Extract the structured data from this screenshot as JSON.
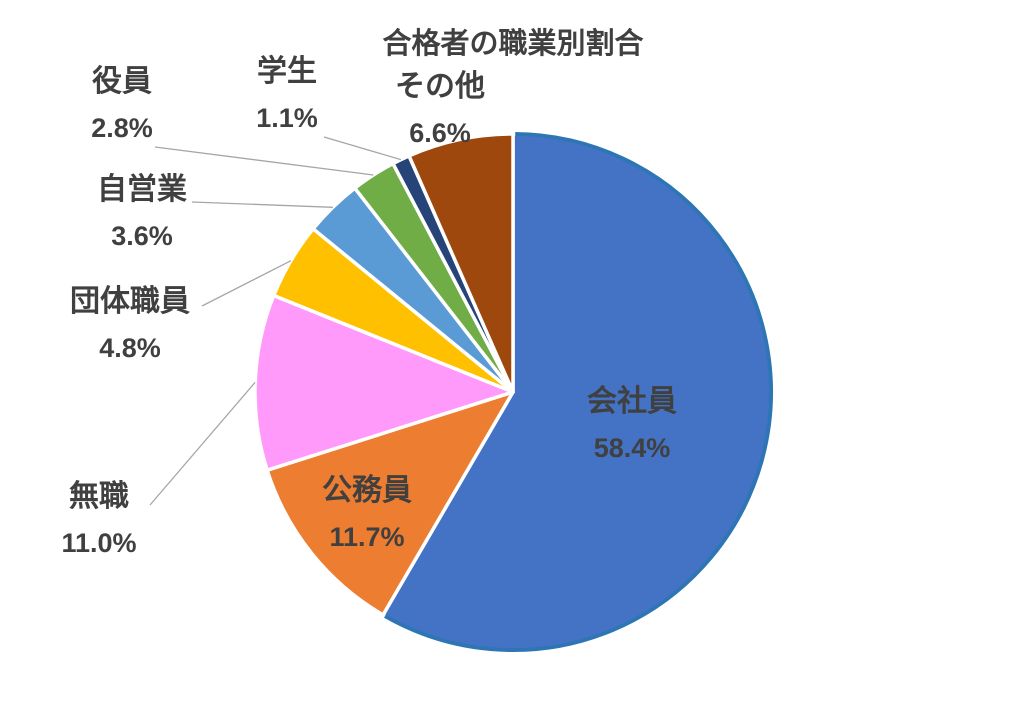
{
  "chart_data": {
    "type": "pie",
    "title": "合格者の職業別割合",
    "direction": "clockwise",
    "start_angle_deg": 0,
    "slices": [
      {
        "label": "会社員",
        "value": 58.4,
        "pct_label": "58.4%",
        "color": "#4472C4",
        "label_placement": "inside"
      },
      {
        "label": "公務員",
        "value": 11.7,
        "pct_label": "11.7%",
        "color": "#ED7D31",
        "label_placement": "inside"
      },
      {
        "label": "無職",
        "value": 11.0,
        "pct_label": "11.0%",
        "color": "#FF99FA",
        "label_placement": "outside-leader"
      },
      {
        "label": "団体職員",
        "value": 4.8,
        "pct_label": "4.8%",
        "color": "#FFC000",
        "label_placement": "outside-leader"
      },
      {
        "label": "自営業",
        "value": 3.6,
        "pct_label": "3.6%",
        "color": "#5B9BD5",
        "label_placement": "outside-leader"
      },
      {
        "label": "役員",
        "value": 2.8,
        "pct_label": "2.8%",
        "color": "#70AD47",
        "label_placement": "outside-leader"
      },
      {
        "label": "学生",
        "value": 1.1,
        "pct_label": "1.1%",
        "color": "#264478",
        "label_placement": "outside-leader"
      },
      {
        "label": "その他",
        "value": 6.6,
        "pct_label": "6.6%",
        "color": "#9E480E",
        "label_placement": "outside"
      }
    ],
    "slice_border_color": "#FFFFFF",
    "first_slice_rim_color": "#2E75B6",
    "label_text_color": "#404040",
    "leader_line_color": "#A6A6A6",
    "background_color": "#FFFFFF",
    "legend": "none",
    "grid": "off"
  }
}
